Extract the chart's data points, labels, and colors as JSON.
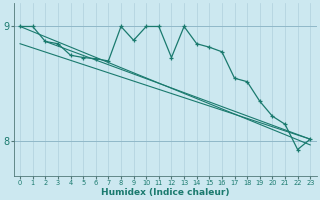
{
  "xlabel": "Humidex (Indice chaleur)",
  "bg_color": "#cce8f0",
  "grid_color_v": "#b0d0dc",
  "grid_color_h": "#90b8c8",
  "line_color": "#1a7a6e",
  "xlim": [
    -0.5,
    23.5
  ],
  "ylim": [
    7.7,
    9.2
  ],
  "yticks": [
    8,
    9
  ],
  "xticks": [
    0,
    1,
    2,
    3,
    4,
    5,
    6,
    7,
    8,
    9,
    10,
    11,
    12,
    13,
    14,
    15,
    16,
    17,
    18,
    19,
    20,
    21,
    22,
    23
  ],
  "series_main": {
    "x": [
      0,
      1,
      2,
      3,
      4,
      5,
      6,
      7,
      8,
      9,
      10,
      11,
      12,
      13,
      14,
      15,
      16,
      17,
      18,
      19,
      20,
      21,
      22,
      23
    ],
    "y": [
      9.0,
      9.0,
      8.87,
      8.85,
      8.75,
      8.73,
      8.72,
      8.7,
      9.0,
      8.88,
      9.0,
      9.0,
      8.73,
      9.0,
      8.85,
      8.82,
      8.78,
      8.55,
      8.52,
      8.35,
      8.22,
      8.15,
      7.93,
      8.02
    ]
  },
  "trend_lines": [
    {
      "x": [
        0,
        23
      ],
      "y": [
        9.0,
        7.97
      ]
    },
    {
      "x": [
        2,
        23
      ],
      "y": [
        8.87,
        8.02
      ]
    },
    {
      "x": [
        0,
        23
      ],
      "y": [
        8.85,
        8.02
      ]
    }
  ]
}
